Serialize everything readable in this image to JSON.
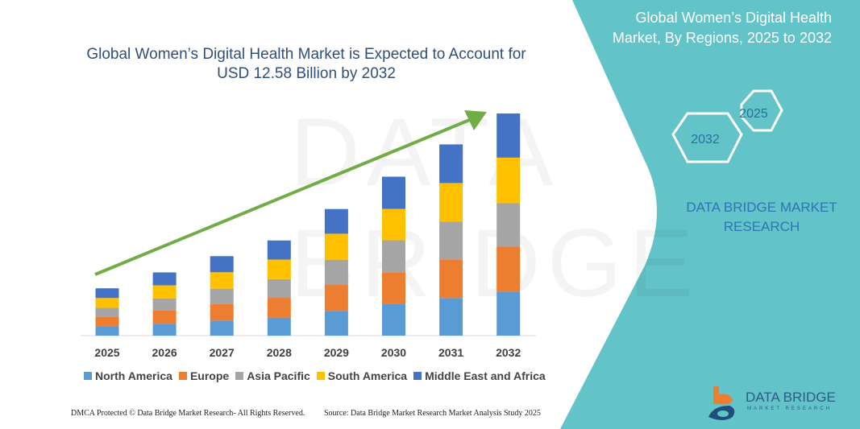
{
  "header": {
    "title_line1": "Global Women’s Digital Health Market is Expected to Account for",
    "title_line2": "USD 12.58 Billion by 2032"
  },
  "side_panel": {
    "title_line1": "Global Women’s Digital Health",
    "title_line2": "Market, By Regions, 2025 to 2032",
    "hex_years": [
      "2025",
      "2032"
    ],
    "brand_line1": "DATA BRIDGE MARKET",
    "brand_line2": "RESEARCH",
    "logo_name": "DATA BRIDGE",
    "logo_tagline": "MARKET RESEARCH",
    "panel_color": "#62c3c8"
  },
  "footer": {
    "copyright": "DMCA Protected © Data Bridge Market Research-  All Rights Reserved.",
    "source": "Source: Data Bridge Market Research  Market Analysis Study 2025"
  },
  "chart_data": {
    "type": "bar",
    "stacked": true,
    "unit": "USD Billion",
    "categories": [
      "2025",
      "2026",
      "2027",
      "2028",
      "2029",
      "2030",
      "2031",
      "2032"
    ],
    "series": [
      {
        "name": "North America",
        "color": "#5b9bd5",
        "values": [
          0.52,
          0.67,
          0.85,
          1.02,
          1.4,
          1.78,
          2.13,
          2.49
        ]
      },
      {
        "name": "Europe",
        "color": "#ed7d31",
        "values": [
          0.53,
          0.76,
          0.93,
          1.12,
          1.47,
          1.81,
          2.19,
          2.55
        ]
      },
      {
        "name": "Asia Pacific",
        "color": "#a5a5a5",
        "values": [
          0.52,
          0.68,
          0.88,
          1.06,
          1.43,
          1.81,
          2.13,
          2.46
        ]
      },
      {
        "name": "South America",
        "color": "#ffc000",
        "values": [
          0.56,
          0.74,
          0.93,
          1.11,
          1.47,
          1.78,
          2.19,
          2.58
        ]
      },
      {
        "name": "Middle East and Africa",
        "color": "#4472c4",
        "values": [
          0.55,
          0.73,
          0.91,
          1.08,
          1.4,
          1.82,
          2.19,
          2.5
        ]
      }
    ],
    "trend_arrow_color": "#70ad47",
    "legend_position": "bottom",
    "grid": false,
    "ylim": [
      0,
      12.58
    ]
  }
}
